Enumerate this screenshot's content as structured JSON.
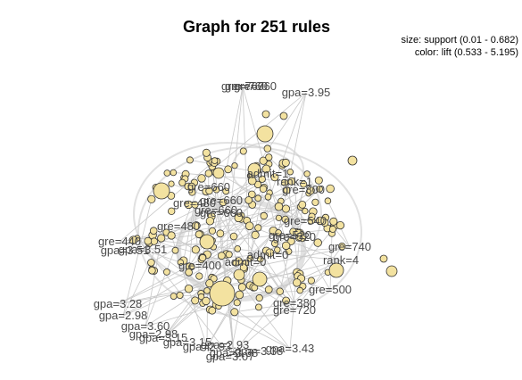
{
  "title": "Graph for 251 rules",
  "legend": {
    "size": "size: support (0.01 - 0.682)",
    "color": "color: lift (0.533 - 5.195)"
  },
  "colors": {
    "node_fill": "#f3e2a0",
    "node_stroke": "#333333",
    "edge": "#c8c8c8",
    "label": "#4a4a4a"
  },
  "item_labels": [
    "gre=760",
    "gpa=3.95",
    "admit=1",
    "rank=1",
    "gre=800",
    "gre=480",
    "gre=660",
    "gre=540",
    "gre=440",
    "gpa=3.51",
    "gre=400",
    "gre=500",
    "rank=4",
    "gre=740",
    "gre=520",
    "gre=380",
    "gre=720",
    "admit=0",
    "gpa=3.28",
    "gpa=2.98",
    "gpa=3.60",
    "gpa=3.15",
    "gpa=2.93",
    "gpa=3.43",
    "gpa=3.38",
    "gpa=3.07"
  ]
}
